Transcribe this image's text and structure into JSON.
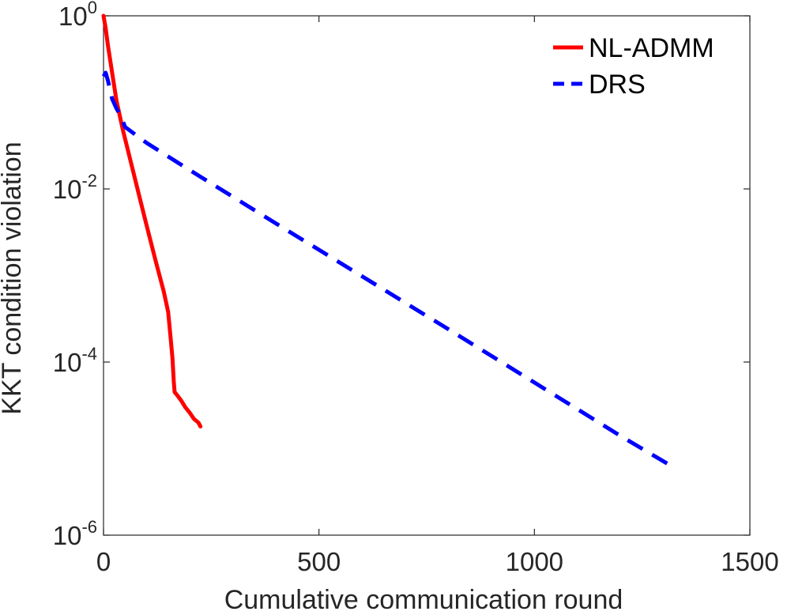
{
  "chart_data": {
    "type": "line",
    "xlabel": "Cumulative communication round",
    "ylabel": "KKT condition violation",
    "xlim": [
      0,
      1500
    ],
    "ylim": [
      1e-06,
      1
    ],
    "y_scale": "log",
    "x_ticks": [
      "0",
      "500",
      "1000",
      "1500"
    ],
    "y_ticks": [
      {
        "base": "10",
        "exp": "0"
      },
      {
        "base": "10",
        "exp": "-2"
      },
      {
        "base": "10",
        "exp": "-4"
      },
      {
        "base": "10",
        "exp": "-6"
      }
    ],
    "grid": false,
    "legend_position": "top-right",
    "series": [
      {
        "name": "NL-ADMM",
        "color": "#ff0000",
        "line_style": "solid",
        "x": [
          0,
          5,
          10,
          20,
          30,
          45,
          60,
          80,
          100,
          120,
          140,
          150,
          155,
          160,
          163,
          165,
          170,
          180,
          190,
          200,
          210,
          220,
          225
        ],
        "y": [
          1.0,
          0.72,
          0.46,
          0.22,
          0.105,
          0.048,
          0.024,
          0.0095,
          0.0038,
          0.00155,
          0.00065,
          0.00038,
          0.00021,
          0.00011,
          6e-05,
          4.5e-05,
          4.2e-05,
          3.6e-05,
          3e-05,
          2.6e-05,
          2.2e-05,
          2e-05,
          1.8e-05
        ]
      },
      {
        "name": "DRS",
        "color": "#0000ff",
        "line_style": "dashed",
        "x": [
          0,
          5,
          10,
          20,
          30,
          40,
          50,
          100,
          200,
          400,
          600,
          800,
          1000,
          1200,
          1320
        ],
        "y": [
          0.2,
          0.22,
          0.18,
          0.11,
          0.085,
          0.07,
          0.052,
          0.034,
          0.0165,
          0.004,
          0.00098,
          0.00024,
          5.8e-05,
          1.4e-05,
          6.2e-06
        ]
      }
    ]
  }
}
